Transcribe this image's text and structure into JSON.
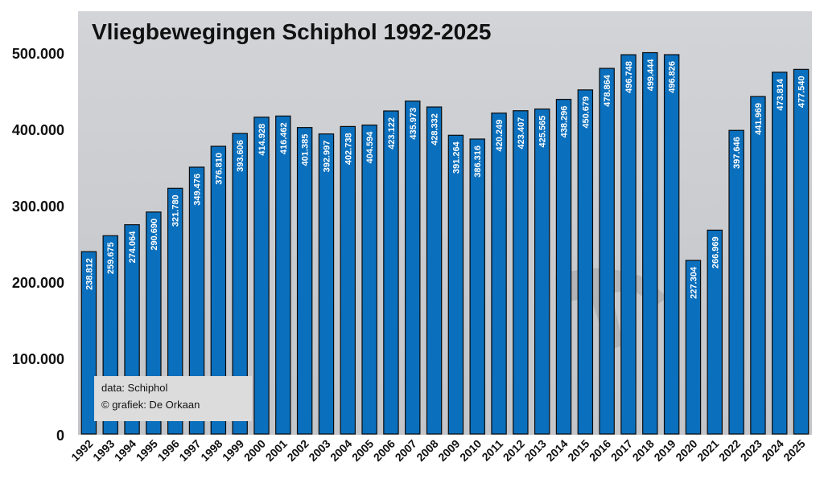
{
  "chart_data": {
    "type": "bar",
    "title": "Vliegbewegingen Schiphol 1992-2025",
    "xlabel": "",
    "ylabel": "",
    "ylim": [
      0,
      550000
    ],
    "yticks": [
      0,
      100000,
      200000,
      300000,
      400000,
      500000
    ],
    "ytick_labels": [
      "0",
      "100.000",
      "200.000",
      "300.000",
      "400.000",
      "500.000"
    ],
    "categories": [
      "1992",
      "1993",
      "1994",
      "1995",
      "1996",
      "1997",
      "1998",
      "1999",
      "2000",
      "2001",
      "2002",
      "2003",
      "2004",
      "2005",
      "2006",
      "2007",
      "2008",
      "2009",
      "2010",
      "2011",
      "2012",
      "2013",
      "2014",
      "2015",
      "2016",
      "2017",
      "2018",
      "2019",
      "2020",
      "2021",
      "2022",
      "2023",
      "2024",
      "2025"
    ],
    "values": [
      238812,
      259675,
      274064,
      290690,
      321780,
      349476,
      376810,
      393606,
      414928,
      416462,
      401385,
      392997,
      402738,
      404594,
      423122,
      435973,
      428332,
      391264,
      386316,
      420249,
      423407,
      425565,
      438296,
      450679,
      478864,
      496748,
      499444,
      496826,
      227304,
      266969,
      397646,
      441969,
      473814,
      477540
    ],
    "value_labels": [
      "238.812",
      "259.675",
      "274.064",
      "290.690",
      "321.780",
      "349.476",
      "376.810",
      "393.606",
      "414.928",
      "416.462",
      "401.385",
      "392.997",
      "402.738",
      "404.594",
      "423.122",
      "435.973",
      "428.332",
      "391.264",
      "386.316",
      "420.249",
      "423.407",
      "425.565",
      "438.296",
      "450.679",
      "478.864",
      "496.748",
      "499.444",
      "496.826",
      "227.304",
      "266.969",
      "397.646",
      "441.969",
      "473.814",
      "477.540"
    ],
    "bar_color": "#0a6fbd",
    "grid": false,
    "annotations": [
      "data: Schiphol",
      "© grafiek: De Orkaan"
    ]
  }
}
